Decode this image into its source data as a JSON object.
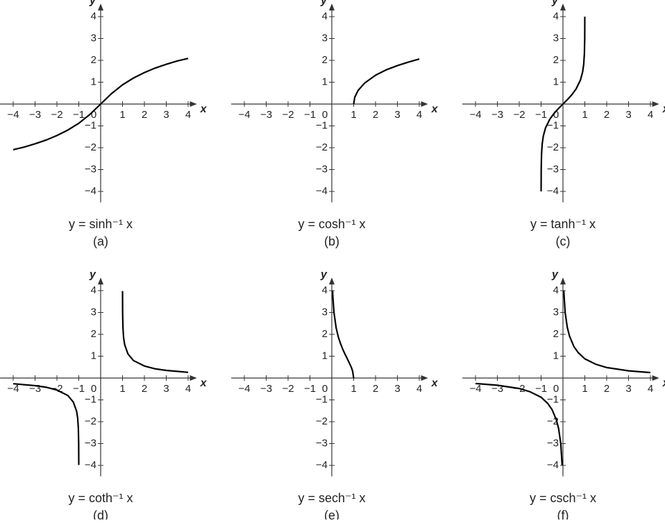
{
  "chart_data": [
    {
      "type": "line",
      "title": "y = sinh⁻¹ x",
      "subtitle": "(a)",
      "x_label": "x",
      "y_label": "y",
      "color": "#000000",
      "x": [
        -4,
        -3.5,
        -3,
        -2.5,
        -2,
        -1.5,
        -1,
        -0.5,
        0,
        0.5,
        1,
        1.5,
        2,
        2.5,
        3,
        3.5,
        4
      ],
      "values": [
        -2.09,
        -1.97,
        -1.82,
        -1.65,
        -1.44,
        -1.19,
        -0.88,
        -0.48,
        0,
        0.48,
        0.88,
        1.19,
        1.44,
        1.65,
        1.82,
        1.97,
        2.09
      ],
      "xlim": [
        -4.6,
        4.4
      ],
      "ylim": [
        -4.5,
        4.6
      ],
      "xticks": [
        {
          "value": -4,
          "label": "−4"
        },
        {
          "value": -3,
          "label": "−3"
        },
        {
          "value": -2,
          "label": "−2"
        },
        {
          "value": -1,
          "label": "−1"
        },
        0,
        1,
        2,
        3,
        4
      ],
      "yticks": [
        {
          "value": -4,
          "label": "−4"
        },
        {
          "value": -3,
          "label": "−3"
        },
        {
          "value": -2,
          "label": "−2"
        },
        {
          "value": -1,
          "label": "−1"
        },
        1,
        2,
        3,
        4
      ]
    },
    {
      "type": "line",
      "title": "y = cosh⁻¹ x",
      "subtitle": "(b)",
      "x_label": "x",
      "y_label": "y",
      "color": "#000000",
      "x": [
        1,
        1.05,
        1.2,
        1.5,
        2,
        2.5,
        3,
        3.5,
        4
      ],
      "values": [
        0,
        0.31,
        0.62,
        0.96,
        1.32,
        1.57,
        1.76,
        1.92,
        2.06
      ],
      "xlim": [
        -4.6,
        4.4
      ],
      "ylim": [
        -4.5,
        4.6
      ],
      "xticks": [
        {
          "value": -4,
          "label": "−4"
        },
        {
          "value": -3,
          "label": "−3"
        },
        {
          "value": -2,
          "label": "−2"
        },
        {
          "value": -1,
          "label": "−1"
        },
        0,
        1,
        2,
        3,
        4
      ],
      "yticks": [
        {
          "value": -4,
          "label": "−4"
        },
        {
          "value": -3,
          "label": "−3"
        },
        {
          "value": -2,
          "label": "−2"
        },
        {
          "value": -1,
          "label": "−1"
        },
        1,
        2,
        3,
        4
      ]
    },
    {
      "type": "line",
      "title": "y = tanh⁻¹ x",
      "subtitle": "(c)",
      "x_label": "x",
      "y_label": "y",
      "color": "#000000",
      "x": [
        -0.9993,
        -0.995,
        -0.98,
        -0.95,
        -0.9,
        -0.8,
        -0.6,
        -0.4,
        -0.2,
        0,
        0.2,
        0.4,
        0.6,
        0.8,
        0.9,
        0.95,
        0.98,
        0.995,
        0.9993
      ],
      "values": [
        -4,
        -2.99,
        -2.3,
        -1.83,
        -1.47,
        -1.1,
        -0.69,
        -0.42,
        -0.2,
        0,
        0.2,
        0.42,
        0.69,
        1.1,
        1.47,
        1.83,
        2.3,
        2.99,
        4
      ],
      "xlim": [
        -4.6,
        4.4
      ],
      "ylim": [
        -4.5,
        4.6
      ],
      "xticks": [
        {
          "value": -4,
          "label": "−4"
        },
        {
          "value": -3,
          "label": "−3"
        },
        {
          "value": -2,
          "label": "−2"
        },
        {
          "value": -1,
          "label": "−1"
        },
        0,
        1,
        2,
        3,
        4
      ],
      "yticks": [
        {
          "value": -4,
          "label": "−4"
        },
        {
          "value": -3,
          "label": "−3"
        },
        {
          "value": -2,
          "label": "−2"
        },
        {
          "value": -1,
          "label": "−1"
        },
        1,
        2,
        3,
        4
      ]
    },
    {
      "type": "line",
      "title": "y = coth⁻¹ x",
      "subtitle": "(d)",
      "x_label": "x",
      "y_label": "y",
      "color": "#000000",
      "x": [
        -4,
        -3,
        -2.5,
        -2,
        -1.5,
        -1.25,
        -1.1,
        -1.05,
        -1.02,
        -1.005,
        -1.0007,
        0,
        1.0007,
        1.005,
        1.02,
        1.05,
        1.1,
        1.25,
        1.5,
        2,
        2.5,
        3,
        4
      ],
      "values": [
        -0.26,
        -0.35,
        -0.42,
        -0.55,
        -0.8,
        -1.1,
        -1.52,
        -1.84,
        -2.31,
        -2.99,
        -3.98,
        null,
        3.98,
        2.99,
        2.31,
        1.84,
        1.52,
        1.1,
        0.8,
        0.55,
        0.42,
        0.35,
        0.26
      ],
      "xlim": [
        -4.6,
        4.4
      ],
      "ylim": [
        -4.5,
        4.6
      ],
      "xticks": [
        {
          "value": -4,
          "label": "−4"
        },
        {
          "value": -3,
          "label": "−3"
        },
        {
          "value": -2,
          "label": "−2"
        },
        {
          "value": -1,
          "label": "−1"
        },
        0,
        1,
        2,
        3,
        4
      ],
      "yticks": [
        {
          "value": -4,
          "label": "−4"
        },
        {
          "value": -3,
          "label": "−3"
        },
        {
          "value": -2,
          "label": "−2"
        },
        {
          "value": -1,
          "label": "−1"
        },
        1,
        2,
        3,
        4
      ]
    },
    {
      "type": "line",
      "title": "y = sech⁻¹ x",
      "subtitle": "(e)",
      "x_label": "x",
      "y_label": "y",
      "color": "#000000",
      "x": [
        0.037,
        0.05,
        0.1,
        0.2,
        0.3,
        0.4,
        0.5,
        0.6,
        0.7,
        0.8,
        0.9,
        0.95,
        1
      ],
      "values": [
        3.99,
        3.69,
        2.99,
        2.29,
        1.87,
        1.57,
        1.32,
        1.1,
        0.9,
        0.69,
        0.47,
        0.32,
        0
      ],
      "xlim": [
        -4.6,
        4.4
      ],
      "ylim": [
        -4.5,
        4.6
      ],
      "xticks": [
        {
          "value": -4,
          "label": "−4"
        },
        {
          "value": -3,
          "label": "−3"
        },
        {
          "value": -2,
          "label": "−2"
        },
        {
          "value": -1,
          "label": "−1"
        },
        0,
        1,
        2,
        3,
        4
      ],
      "yticks": [
        {
          "value": -4,
          "label": "−4"
        },
        {
          "value": -3,
          "label": "−3"
        },
        {
          "value": -2,
          "label": "−2"
        },
        {
          "value": -1,
          "label": "−1"
        },
        1,
        2,
        3,
        4
      ]
    },
    {
      "type": "line",
      "title": "y = csch⁻¹ x",
      "subtitle": "(f)",
      "x_label": "x",
      "y_label": "y",
      "color": "#000000",
      "x": [
        -4,
        -3,
        -2,
        -1.5,
        -1,
        -0.7,
        -0.5,
        -0.3,
        -0.2,
        -0.1,
        -0.037,
        0,
        0.037,
        0.1,
        0.2,
        0.3,
        0.5,
        0.7,
        1,
        1.5,
        2,
        3,
        4
      ],
      "values": [
        -0.25,
        -0.33,
        -0.48,
        -0.63,
        -0.88,
        -1.16,
        -1.44,
        -1.92,
        -2.31,
        -3.0,
        -3.99,
        null,
        3.99,
        3.0,
        2.31,
        1.92,
        1.44,
        1.16,
        0.88,
        0.63,
        0.48,
        0.33,
        0.25
      ],
      "xlim": [
        -4.6,
        4.4
      ],
      "ylim": [
        -4.5,
        4.6
      ],
      "xticks": [
        {
          "value": -4,
          "label": "−4"
        },
        {
          "value": -3,
          "label": "−3"
        },
        {
          "value": -2,
          "label": "−2"
        },
        {
          "value": -1,
          "label": "−1"
        },
        0,
        1,
        2,
        3,
        4
      ],
      "yticks": [
        {
          "value": -4,
          "label": "−4"
        },
        {
          "value": -3,
          "label": "−3"
        },
        {
          "value": -2,
          "label": "−2"
        },
        {
          "value": -1,
          "label": "−1"
        },
        1,
        2,
        3,
        4
      ]
    }
  ]
}
